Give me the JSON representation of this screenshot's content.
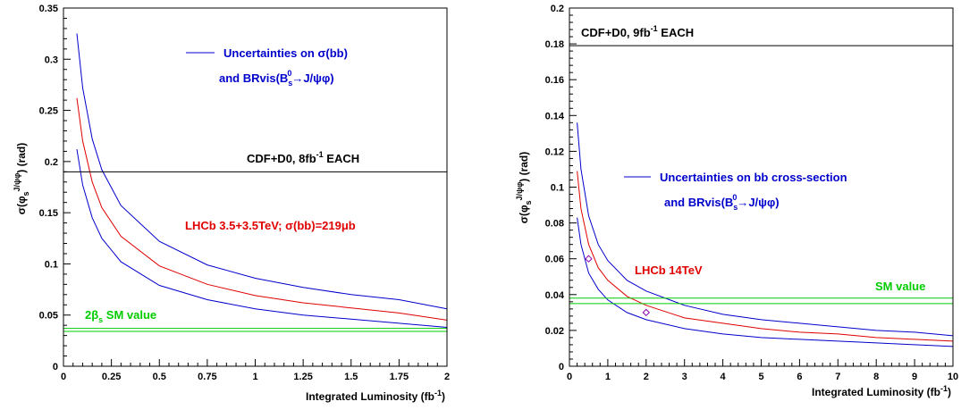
{
  "colors": {
    "blue": "#0000cc",
    "red": "#e00000",
    "green": "#00cc00",
    "black": "#000000"
  },
  "chart_data": [
    {
      "type": "line",
      "xlabel": "Integrated Luminosity (fb",
      "xlabel_sup": "-1",
      "xlabel_end": ")",
      "ylabel": "σ(φ",
      "ylabel_sub": "s",
      "ylabel_sup": "J/ψφ",
      "ylabel_end": ") (rad)",
      "xlim": [
        0,
        2
      ],
      "ylim": [
        0,
        0.35
      ],
      "xticks": [
        "0",
        "0.25",
        "0.5",
        "0.75",
        "1",
        "1.25",
        "1.5",
        "1.75",
        "2"
      ],
      "xtick_values": [
        0,
        0.25,
        0.5,
        0.75,
        1,
        1.25,
        1.5,
        1.75,
        2
      ],
      "yticks": [
        "0",
        "0.05",
        "0.1",
        "0.15",
        "0.2",
        "0.25",
        "0.3",
        "0.35"
      ],
      "ytick_values": [
        0,
        0.05,
        0.1,
        0.15,
        0.2,
        0.25,
        0.3,
        0.35
      ],
      "series": [
        {
          "color": "blue",
          "x": [
            0.07,
            0.1,
            0.15,
            0.2,
            0.3,
            0.5,
            0.75,
            1.0,
            1.25,
            1.5,
            1.75,
            2.0
          ],
          "y": [
            0.325,
            0.272,
            0.222,
            0.192,
            0.157,
            0.122,
            0.099,
            0.086,
            0.077,
            0.07,
            0.065,
            0.056
          ]
        },
        {
          "color": "red",
          "x": [
            0.07,
            0.1,
            0.15,
            0.2,
            0.3,
            0.5,
            0.75,
            1.0,
            1.25,
            1.5,
            1.75,
            2.0
          ],
          "y": [
            0.262,
            0.22,
            0.18,
            0.155,
            0.127,
            0.098,
            0.08,
            0.069,
            0.062,
            0.057,
            0.052,
            0.045
          ]
        },
        {
          "color": "blue",
          "x": [
            0.07,
            0.1,
            0.15,
            0.2,
            0.3,
            0.5,
            0.75,
            1.0,
            1.25,
            1.5,
            1.75,
            2.0
          ],
          "y": [
            0.212,
            0.177,
            0.145,
            0.125,
            0.102,
            0.079,
            0.065,
            0.056,
            0.05,
            0.046,
            0.042,
            0.038
          ]
        }
      ],
      "hlines": [
        {
          "color": "black",
          "y": 0.19
        },
        {
          "color": "green",
          "y": 0.037
        },
        {
          "color": "green",
          "y": 0.034
        }
      ],
      "annotations": {
        "uncert_1": "Uncertainties on  σ(b",
        "uncert_1b": "b",
        "uncert_1c": ")",
        "uncert_2": "and BRvis(B",
        "uncert_2_sub": "s",
        "uncert_2_sup": "0",
        "uncert_2_end": "→J/ψφ)",
        "cdf": "CDF+D0, 8fb",
        "cdf_sup": "-1",
        "cdf_end": " EACH",
        "lhcb": "LHCb 3.5+3.5TeV;  σ(b",
        "lhcb_b": "b",
        "lhcb_end": ")=219μb",
        "sm": "2β",
        "sm_sub": "s",
        "sm_end": " SM value"
      }
    },
    {
      "type": "line",
      "xlabel": "Integrated Luminosity (fb",
      "xlabel_sup": "-1",
      "xlabel_end": ")",
      "ylabel": "σ(φ",
      "ylabel_sub": "s",
      "ylabel_sup": "J/ψφ",
      "ylabel_end": ") (rad)",
      "xlim": [
        0,
        10
      ],
      "ylim": [
        0,
        0.2
      ],
      "xticks": [
        "0",
        "1",
        "2",
        "3",
        "4",
        "5",
        "6",
        "7",
        "8",
        "9",
        "10"
      ],
      "xtick_values": [
        0,
        1,
        2,
        3,
        4,
        5,
        6,
        7,
        8,
        9,
        10
      ],
      "yticks": [
        "0",
        "0.02",
        "0.04",
        "0.06",
        "0.08",
        "0.1",
        "0.12",
        "0.14",
        "0.16",
        "0.18",
        "0.2"
      ],
      "ytick_values": [
        0,
        0.02,
        0.04,
        0.06,
        0.08,
        0.1,
        0.12,
        0.14,
        0.16,
        0.18,
        0.2
      ],
      "series": [
        {
          "color": "blue",
          "x": [
            0.2,
            0.3,
            0.5,
            0.75,
            1,
            1.5,
            2,
            3,
            4,
            5,
            6,
            7,
            8,
            9,
            10
          ],
          "y": [
            0.136,
            0.11,
            0.084,
            0.068,
            0.059,
            0.048,
            0.042,
            0.034,
            0.029,
            0.026,
            0.024,
            0.022,
            0.02,
            0.019,
            0.017
          ]
        },
        {
          "color": "red",
          "x": [
            0.2,
            0.3,
            0.5,
            0.75,
            1,
            1.5,
            2,
            3,
            4,
            5,
            6,
            7,
            8,
            9,
            10
          ],
          "y": [
            0.109,
            0.088,
            0.068,
            0.055,
            0.048,
            0.039,
            0.034,
            0.027,
            0.024,
            0.021,
            0.019,
            0.018,
            0.016,
            0.015,
            0.014
          ]
        },
        {
          "color": "blue",
          "x": [
            0.2,
            0.3,
            0.5,
            0.75,
            1,
            1.5,
            2,
            3,
            4,
            5,
            6,
            7,
            8,
            9,
            10
          ],
          "y": [
            0.083,
            0.068,
            0.052,
            0.043,
            0.037,
            0.03,
            0.026,
            0.021,
            0.018,
            0.016,
            0.015,
            0.014,
            0.013,
            0.012,
            0.011
          ]
        }
      ],
      "markers": [
        {
          "color": "red",
          "x": 0.5,
          "y": 0.06
        },
        {
          "color": "red",
          "x": 2.0,
          "y": 0.03
        }
      ],
      "hlines": [
        {
          "color": "black",
          "y": 0.179
        },
        {
          "color": "green",
          "y": 0.038
        },
        {
          "color": "green",
          "y": 0.035
        }
      ],
      "annotations": {
        "cdf": "CDF+D0, 9fb",
        "cdf_sup": "-1",
        "cdf_end": " EACH",
        "uncert_1": "Uncertainties on b",
        "uncert_1b": "b",
        "uncert_1c": "  cross-section",
        "uncert_2": "and BRvis(B",
        "uncert_2_sub": "s",
        "uncert_2_sup": "0",
        "uncert_2_end": "→J/ψφ)",
        "lhcb": "LHCb 14TeV",
        "sm": "SM value"
      }
    }
  ]
}
